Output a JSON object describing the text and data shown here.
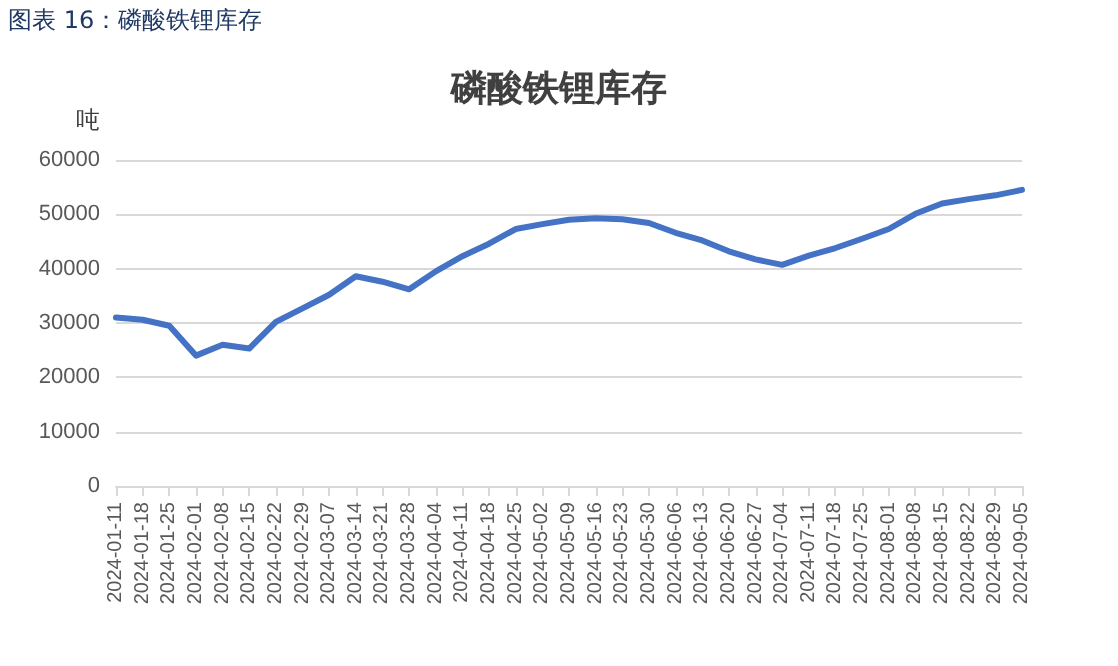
{
  "chart_data": {
    "type": "line",
    "title": "磷酸铁锂库存",
    "subtitle": "图表 16：磷酸铁锂库存",
    "ylabel": "吨",
    "categories": [
      "2024-01-11",
      "2024-01-18",
      "2024-01-25",
      "2024-02-01",
      "2024-02-08",
      "2024-02-15",
      "2024-02-22",
      "2024-02-29",
      "2024-03-07",
      "2024-03-14",
      "2024-03-21",
      "2024-03-28",
      "2024-04-04",
      "2024-04-11",
      "2024-04-18",
      "2024-04-25",
      "2024-05-02",
      "2024-05-09",
      "2024-05-16",
      "2024-05-23",
      "2024-05-30",
      "2024-06-06",
      "2024-06-13",
      "2024-06-20",
      "2024-06-27",
      "2024-07-04",
      "2024-07-11",
      "2024-07-18",
      "2024-07-25",
      "2024-08-01",
      "2024-08-08",
      "2024-08-15",
      "2024-08-22",
      "2024-08-29",
      "2024-09-05"
    ],
    "series": [
      {
        "color": "#4472c4",
        "values": [
          31000,
          30600,
          29500,
          24000,
          26000,
          25300,
          30200,
          32700,
          35200,
          38600,
          37600,
          36200,
          39500,
          42300,
          44600,
          47300,
          48200,
          49000,
          49300,
          49100,
          48400,
          46600,
          45200,
          43200,
          41700,
          40700,
          42400,
          43800,
          45500,
          47300,
          50100,
          52000,
          52800,
          53500,
          54500
        ]
      }
    ],
    "ylim": [
      0,
      60000
    ],
    "yticks": [
      0,
      10000,
      20000,
      30000,
      40000,
      50000,
      60000
    ],
    "grid": "y",
    "marker": "none",
    "line_style": "solid"
  }
}
